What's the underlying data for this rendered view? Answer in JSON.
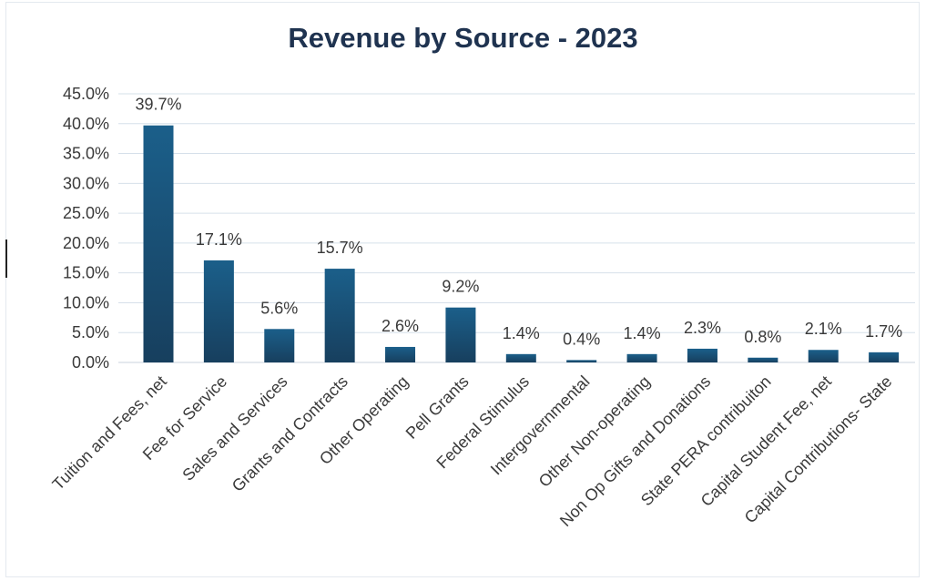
{
  "chart_data": {
    "type": "bar",
    "title": "Revenue by Source - 2023",
    "xlabel": "",
    "ylabel": "",
    "ylim": [
      0,
      45
    ],
    "y_ticks": [
      "0.0%",
      "5.0%",
      "10.0%",
      "15.0%",
      "20.0%",
      "25.0%",
      "30.0%",
      "35.0%",
      "40.0%",
      "45.0%"
    ],
    "grid": true,
    "legend": "none",
    "bar_color": "#1a5a82",
    "categories": [
      "Tuition and Fees, net",
      "Fee for Service",
      "Sales and Services",
      "Grants and Contracts",
      "Other Operating",
      "Pell Grants",
      "Federal Stimulus",
      "Intergovernmental",
      "Other Non-operating",
      "Non Op Gifts and Donations",
      "State PERA contribuiton",
      "Capital Student Fee, net",
      "Capital Contributions- State"
    ],
    "values": [
      39.7,
      17.1,
      5.6,
      15.7,
      2.6,
      9.2,
      1.4,
      0.4,
      1.4,
      2.3,
      0.8,
      2.1,
      1.7
    ],
    "data_labels": [
      "39.7%",
      "17.1%",
      "5.6%",
      "15.7%",
      "2.6%",
      "9.2%",
      "1.4%",
      "0.4%",
      "1.4%",
      "2.3%",
      "0.8%",
      "2.1%",
      "1.7%"
    ]
  }
}
